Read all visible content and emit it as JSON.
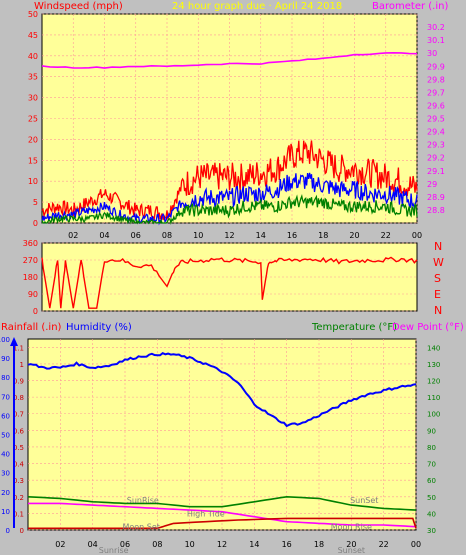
{
  "header": {
    "left": "Windspeed (mph)",
    "center": "24 hour graph due · April 24 2018",
    "right": "Barometer (.in)"
  },
  "bottom_header": {
    "rainfall": "Rainfall (.in)",
    "humidity": "Humidity (%)",
    "temperature": "Temperature (°F)",
    "dewpoint": "Dew Point (°F)"
  },
  "compass": [
    "N",
    "W",
    "S",
    "E",
    "N"
  ],
  "colors": {
    "background": "#c0c0c0",
    "plot_bg": "#ffff99",
    "grid": "#ff9999",
    "gust": "#ff0000",
    "wind_avg": "#0000ff",
    "wind_low": "#008000",
    "barometer": "#ff00ff",
    "direction": "#ff0000",
    "humidity": "#0000ff",
    "temperature": "#008000",
    "dewpoint": "#ff00ff",
    "rainfall": "#cc0000"
  },
  "chart_data": [
    {
      "id": "wind",
      "type": "line",
      "x_ticks": [
        "02",
        "04",
        "06",
        "08",
        "10",
        "12",
        "14",
        "16",
        "18",
        "20",
        "22",
        "00"
      ],
      "y_left": {
        "label": "Windspeed (mph)",
        "ylim": [
          0,
          50
        ],
        "ticks": [
          0,
          5,
          10,
          15,
          20,
          25,
          30,
          35,
          40,
          45,
          50
        ]
      },
      "y_right": {
        "label": "Barometer (.in)",
        "ylim": [
          28.7,
          30.3
        ],
        "ticks": [
          "28.8",
          "28.9",
          "29",
          "29.1",
          "29.2",
          "29.3",
          "29.4",
          "29.5",
          "29.6",
          "29.7",
          "29.8",
          "29.9",
          "30",
          "30.1",
          "30.2"
        ]
      },
      "series": [
        {
          "name": "Gust",
          "color": "#ff0000",
          "x": [
            0,
            1,
            2,
            3,
            4,
            5,
            6,
            7,
            8,
            9,
            10,
            11,
            12,
            13,
            14,
            15,
            16,
            17,
            18,
            19,
            20,
            21,
            22,
            23,
            24
          ],
          "values": [
            3,
            4,
            3,
            5,
            7,
            5,
            3,
            3,
            2,
            9,
            11,
            11,
            11,
            11,
            12,
            13,
            16,
            17,
            15,
            13,
            13,
            12,
            11,
            10,
            8
          ]
        },
        {
          "name": "Average",
          "color": "#0000ff",
          "x": [
            0,
            1,
            2,
            3,
            4,
            5,
            6,
            7,
            8,
            9,
            10,
            11,
            12,
            13,
            14,
            15,
            16,
            17,
            18,
            19,
            20,
            21,
            22,
            23,
            24
          ],
          "values": [
            1,
            2,
            2,
            3,
            4,
            2,
            1,
            1,
            1,
            5,
            6,
            6,
            6,
            7,
            7,
            8,
            10,
            10,
            9,
            8,
            8,
            7,
            7,
            6,
            5
          ]
        },
        {
          "name": "Low",
          "color": "#008000",
          "x": [
            0,
            1,
            2,
            3,
            4,
            5,
            6,
            7,
            8,
            9,
            10,
            11,
            12,
            13,
            14,
            15,
            16,
            17,
            18,
            19,
            20,
            21,
            22,
            23,
            24
          ],
          "values": [
            0,
            1,
            1,
            1,
            2,
            1,
            0,
            0,
            0,
            3,
            3,
            3,
            3,
            4,
            4,
            4,
            5,
            5,
            5,
            4,
            4,
            4,
            4,
            3,
            3
          ]
        },
        {
          "name": "Barometer",
          "axis": "right",
          "color": "#ff00ff",
          "x": [
            0,
            2,
            4,
            6,
            8,
            10,
            12,
            14,
            16,
            18,
            20,
            22,
            24
          ],
          "values": [
            29.9,
            29.89,
            29.89,
            29.9,
            29.9,
            29.91,
            29.92,
            29.92,
            29.94,
            29.96,
            29.99,
            30.0,
            30.0
          ]
        }
      ]
    },
    {
      "id": "direction",
      "type": "line",
      "ylim": [
        0,
        360
      ],
      "y_ticks": [
        0,
        90,
        180,
        270,
        360
      ],
      "series": [
        {
          "name": "Direction",
          "color": "#ff0000",
          "x": [
            0,
            0.5,
            1,
            1.2,
            1.5,
            2,
            2.5,
            3,
            3.5,
            4,
            5,
            6,
            7,
            8,
            8.5,
            9,
            10,
            11,
            12,
            13,
            14,
            14.1,
            14.5,
            15,
            16,
            17,
            18,
            19,
            20,
            21,
            22,
            23,
            24
          ],
          "values": [
            270,
            15,
            270,
            15,
            270,
            15,
            270,
            15,
            15,
            270,
            270,
            240,
            240,
            130,
            230,
            260,
            265,
            275,
            270,
            265,
            260,
            60,
            260,
            265,
            270,
            275,
            270,
            260,
            265,
            270,
            270,
            275,
            265
          ]
        }
      ]
    },
    {
      "id": "climate",
      "type": "line",
      "x_ticks": [
        "02",
        "04",
        "06",
        "08",
        "10",
        "12",
        "14",
        "16",
        "18",
        "20",
        "22",
        "00"
      ],
      "y_rain": {
        "label": "Rainfall (.in)",
        "ylim": [
          0,
          1.15
        ],
        "ticks": [
          "0",
          "0.1",
          "0.2",
          "0.3",
          "0.4",
          "0.5",
          "0.6",
          "0.7",
          "0.8",
          "0.9",
          "1",
          "1.1"
        ]
      },
      "y_humidity": {
        "label": "Humidity (%)",
        "ylim": [
          0,
          100
        ],
        "ticks": [
          0,
          10,
          20,
          30,
          40,
          50,
          60,
          70,
          80,
          90,
          100
        ]
      },
      "y_temp": {
        "label": "Temperature (°F)",
        "ylim": [
          30,
          145
        ],
        "ticks": [
          30,
          40,
          50,
          60,
          70,
          80,
          90,
          100,
          110,
          120,
          130,
          140
        ]
      },
      "series": [
        {
          "name": "Humidity",
          "axis": "humidity",
          "color": "#0000ff",
          "x": [
            0,
            1,
            2,
            3,
            4,
            5,
            6,
            7,
            8,
            9,
            10,
            11,
            12,
            13,
            14,
            15,
            16,
            17,
            18,
            19,
            20,
            21,
            22,
            23,
            24
          ],
          "values": [
            87,
            85,
            85,
            87,
            85,
            86,
            89,
            91,
            92,
            92,
            90,
            87,
            83,
            77,
            66,
            60,
            55,
            56,
            60,
            64,
            68,
            71,
            73,
            75,
            76
          ]
        },
        {
          "name": "Temperature",
          "axis": "temp",
          "color": "#008000",
          "x": [
            0,
            2,
            4,
            6,
            8,
            10,
            12,
            14,
            16,
            18,
            20,
            22,
            24
          ],
          "values": [
            50,
            49,
            47,
            46,
            46,
            44,
            44,
            47,
            50,
            49,
            45,
            43,
            42
          ]
        },
        {
          "name": "Dew Point",
          "axis": "temp",
          "color": "#ff00ff",
          "x": [
            0,
            2,
            4,
            6,
            8,
            10,
            12,
            14,
            16,
            18,
            20,
            22,
            24
          ],
          "values": [
            46,
            46,
            45,
            44,
            43,
            42,
            41,
            38,
            35,
            34,
            33,
            33,
            32
          ]
        },
        {
          "name": "Rainfall",
          "axis": "rain",
          "color": "#cc0000",
          "x": [
            0,
            8,
            9,
            13,
            16,
            18,
            20,
            22,
            23.8,
            24
          ],
          "values": [
            0.01,
            0.01,
            0.04,
            0.06,
            0.07,
            0.07,
            0.07,
            0.07,
            0.07,
            0.01
          ]
        }
      ],
      "annotations": [
        {
          "text": "SunRise",
          "x": 7.1,
          "y": 0.18
        },
        {
          "text": "SunSet",
          "x": 20.8,
          "y": 0.18
        },
        {
          "text": "High Tide",
          "x": 11,
          "y": 0.1
        },
        {
          "text": "Moon Set",
          "x": 7,
          "y": 0.02
        },
        {
          "text": "Moon Rise",
          "x": 20,
          "y": 0.02
        },
        {
          "text": "Sunrise",
          "x": 5.3,
          "y": -0.12
        },
        {
          "text": "Sunset",
          "x": 20,
          "y": -0.12
        }
      ]
    }
  ]
}
